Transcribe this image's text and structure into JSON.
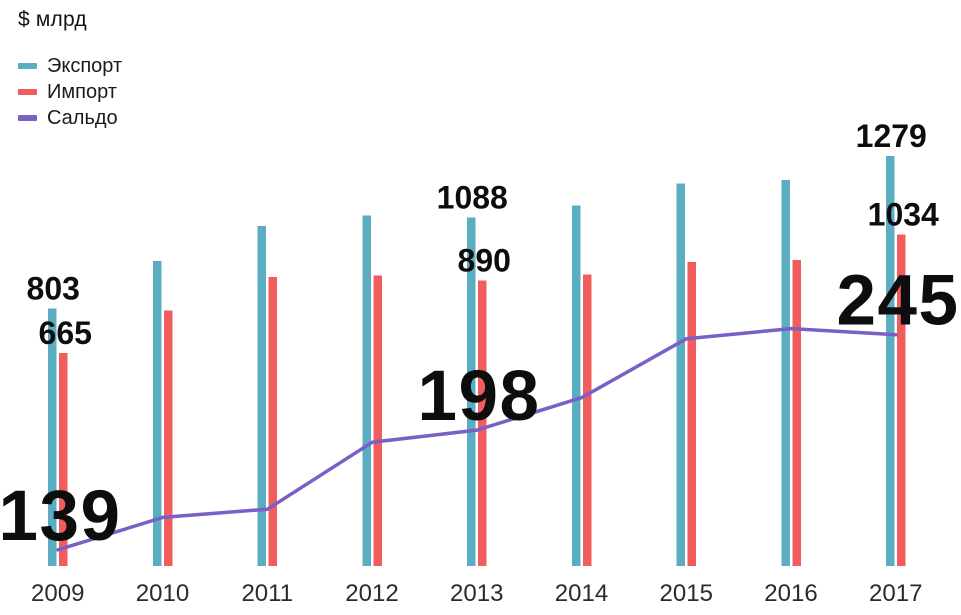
{
  "title": "$ млрд",
  "legend": [
    {
      "label": "Экспорт",
      "color": "#5badc2"
    },
    {
      "label": "Импорт",
      "color": "#f15c5c"
    },
    {
      "label": "Сальдо",
      "color": "#7a5fc6"
    }
  ],
  "chart_data": {
    "type": "bar",
    "title": "$ млрд",
    "ylabel": "$ млрд",
    "xlabel": "",
    "grid": false,
    "y_axis_visible": false,
    "legend_position": "top-left",
    "categories": [
      "2009",
      "2010",
      "2011",
      "2012",
      "2013",
      "2014",
      "2015",
      "2016",
      "2017"
    ],
    "series": [
      {
        "name": "Экспорт",
        "type": "bar",
        "color": "#5badc2",
        "values": [
          803,
          952,
          1061,
          1093,
          1088,
          1124,
          1194,
          1204,
          1279
        ]
      },
      {
        "name": "Импорт",
        "type": "bar",
        "color": "#f15c5c",
        "values": [
          665,
          797,
          902,
          906,
          890,
          910,
          949,
          955,
          1034
        ]
      },
      {
        "name": "Сальдо",
        "type": "line",
        "color": "#7a5fc6",
        "values": [
          139,
          155,
          159,
          192,
          198,
          214,
          243,
          248,
          245
        ]
      }
    ],
    "value_labels": [
      {
        "category": "2009",
        "series": "Экспорт",
        "text": "803"
      },
      {
        "category": "2009",
        "series": "Импорт",
        "text": "665"
      },
      {
        "category": "2009",
        "series": "Сальдо",
        "text": "139"
      },
      {
        "category": "2013",
        "series": "Экспорт",
        "text": "1088"
      },
      {
        "category": "2013",
        "series": "Импорт",
        "text": "890"
      },
      {
        "category": "2013",
        "series": "Сальдо",
        "text": "198"
      },
      {
        "category": "2017",
        "series": "Экспорт",
        "text": "1279"
      },
      {
        "category": "2017",
        "series": "Импорт",
        "text": "1034"
      },
      {
        "category": "2017",
        "series": "Сальдо",
        "text": "245"
      }
    ]
  }
}
